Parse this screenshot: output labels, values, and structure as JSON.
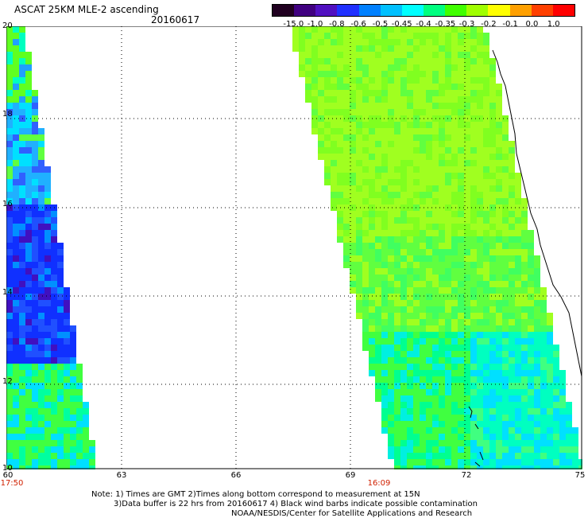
{
  "title": "ASCAT 25KM MLE-2 ascending",
  "date": "20160617",
  "colorbar": {
    "labels": [
      "-15.0",
      "-1.0",
      "-0.8",
      "-0.6",
      "-0.5",
      "-0.45",
      "-0.4",
      "-0.35",
      "-0.3",
      "-0.2",
      "-0.1",
      "0.0",
      "1.0"
    ],
    "colors": [
      "#200020",
      "#400080",
      "#5010c0",
      "#2030ff",
      "#0080ff",
      "#00c0ff",
      "#00ffff",
      "#00ff80",
      "#40ff00",
      "#a0ff00",
      "#ffff00",
      "#ffa000",
      "#ff4000",
      "#ff0000"
    ]
  },
  "axes": {
    "y_ticks": [
      "20",
      "18",
      "16",
      "14",
      "12",
      "10"
    ],
    "x_ticks": [
      "60",
      "63",
      "66",
      "69",
      "72",
      "75"
    ],
    "times": [
      "17:50",
      "16:09"
    ]
  },
  "notes": {
    "line1": "Note: 1) Times are GMT 2)Times along bottom correspond to measurement at 15N",
    "line2": "3)Data buffer is 22 hrs from 20160617 4) Black wind barbs indicate possible contamination",
    "line3": "NOAA/NESDIS/Center for Satellite Applications and Research"
  }
}
